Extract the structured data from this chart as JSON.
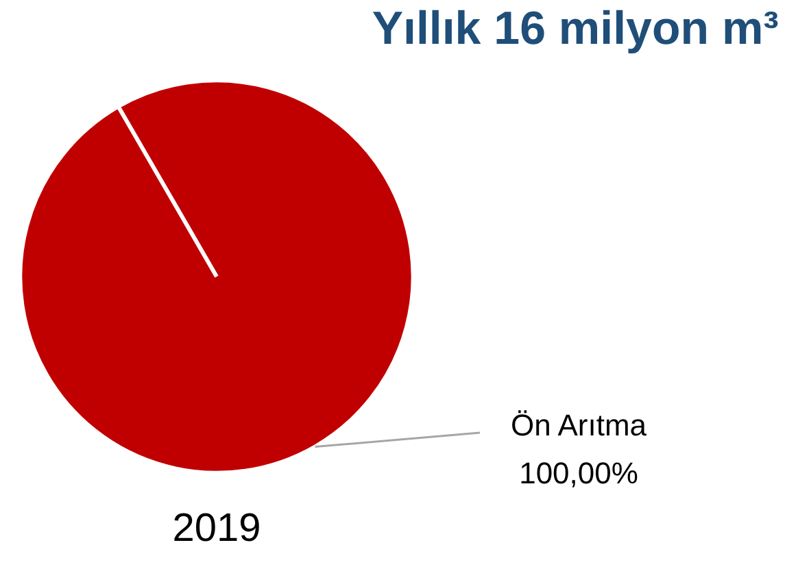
{
  "chart_data": {
    "type": "pie",
    "title": "Yıllık 16 milyon m³",
    "xlabel": "2019",
    "categories": [
      "Ön Arıtma"
    ],
    "values": [
      100
    ],
    "colors": [
      "#c00000"
    ],
    "value_labels": [
      "100,00%"
    ],
    "legend": false
  }
}
